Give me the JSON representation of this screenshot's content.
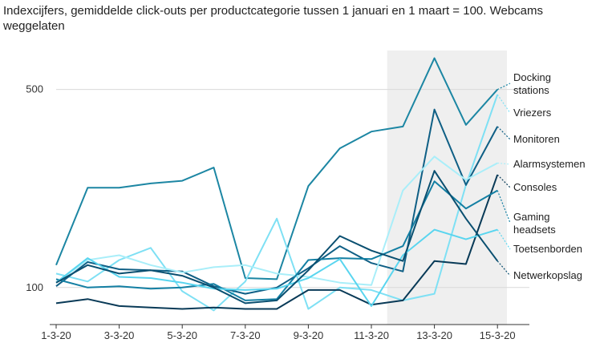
{
  "chart_data": {
    "type": "line",
    "title": "Indexcijfers, gemiddelde click-outs per productcategorie tussen 1 januari en 1 maart = 100. Webcams weggelaten",
    "xlabel": "",
    "ylabel": "",
    "y_scale": "log",
    "ylim": [
      74,
      700
    ],
    "y_ticks": [
      100,
      500
    ],
    "x_tick_labels": [
      "1-3-20",
      "3-3-20",
      "5-3-20",
      "7-3-20",
      "9-3-20",
      "11-3-20",
      "13-3-20",
      "15-3-20"
    ],
    "highlight_range": [
      11.5,
      15.3
    ],
    "x": [
      1,
      2,
      3,
      4,
      5,
      6,
      7,
      8,
      9,
      10,
      11,
      12,
      13,
      14,
      15
    ],
    "series": [
      {
        "name": "Docking stations",
        "label_lines": [
          "Docking",
          "stations"
        ],
        "color": "#1c86a3",
        "values": [
          120,
          225,
          225,
          233,
          238,
          265,
          108,
          107,
          228,
          310,
          355,
          370,
          645,
          375,
          500
        ]
      },
      {
        "name": "Vriezers",
        "label_lines": [
          "Vriezers"
        ],
        "color": "#7ee0f4",
        "values": [
          112,
          105,
          125,
          138,
          97,
          83,
          105,
          175,
          84,
          100,
          98,
          90,
          95,
          230,
          480
        ]
      },
      {
        "name": "Monitoren",
        "label_lines": [
          "Monitoren"
        ],
        "color": "#0f5f85",
        "values": [
          101,
          123,
          116,
          115,
          114,
          101,
          95,
          100,
          117,
          140,
          122,
          114,
          425,
          230,
          370
        ]
      },
      {
        "name": "Alarmsystemen",
        "label_lines": [
          "Alarmsystemen"
        ],
        "color": "#a9eef9",
        "values": [
          104,
          125,
          130,
          120,
          113,
          118,
          120,
          112,
          109,
          104,
          102,
          220,
          290,
          240,
          275
        ]
      },
      {
        "name": "Consoles",
        "label_lines": [
          "Consoles"
        ],
        "color": "#093a57",
        "values": [
          88,
          91,
          86,
          85,
          84,
          85,
          84,
          84,
          98,
          98,
          87,
          90,
          124,
          121,
          250
        ]
      },
      {
        "name": "Gaming headsets",
        "label_lines": [
          "Gaming",
          "headsets"
        ],
        "color": "#137fa3",
        "values": [
          107,
          100,
          101,
          99,
          100,
          103,
          90,
          91,
          125,
          127,
          126,
          140,
          237,
          190,
          220
        ]
      },
      {
        "name": "Toetsenborden",
        "label_lines": [
          "Toetsenborden"
        ],
        "color": "#59d5ef",
        "values": [
          104,
          127,
          109,
          108,
          104,
          99,
          98,
          99,
          108,
          126,
          86,
          130,
          160,
          148,
          160
        ]
      },
      {
        "name": "Netwerkopslag",
        "label_lines": [
          "Netwerkopslag"
        ],
        "color": "#0a4f70",
        "values": [
          104,
          120,
          112,
          115,
          110,
          100,
          88,
          90,
          115,
          152,
          135,
          124,
          258,
          175,
          124
        ]
      }
    ]
  }
}
